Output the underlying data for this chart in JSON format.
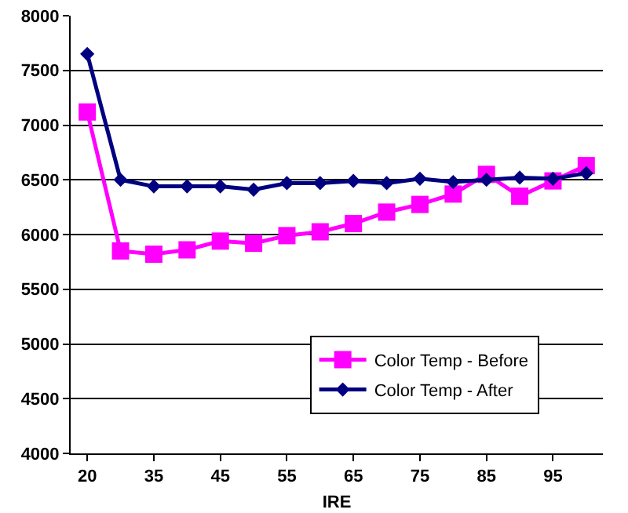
{
  "chart_data": {
    "type": "line",
    "xlabel": "IRE",
    "categories": [
      "20",
      null,
      "35",
      null,
      "45",
      null,
      "55",
      null,
      "65",
      null,
      "75",
      null,
      "85",
      null,
      "95",
      null
    ],
    "series": [
      {
        "name": "Color Temp - Before",
        "color": "#ff00ff",
        "marker": "square",
        "values": [
          7120,
          5850,
          5820,
          5860,
          5940,
          5920,
          5990,
          6025,
          6100,
          6205,
          6275,
          6370,
          6550,
          6350,
          6490,
          6630
        ]
      },
      {
        "name": "Color Temp - After",
        "color": "#000080",
        "marker": "diamond",
        "values": [
          7650,
          6500,
          6440,
          6440,
          6440,
          6410,
          6470,
          6470,
          6490,
          6470,
          6510,
          6480,
          6500,
          6520,
          6510,
          6560
        ]
      }
    ],
    "ylim": [
      4000,
      8000
    ],
    "yticks": [
      4000,
      4500,
      5000,
      5500,
      6000,
      6500,
      7000,
      7500,
      8000
    ],
    "grid": "y",
    "legend": "bottom right",
    "line_style": "solid"
  }
}
